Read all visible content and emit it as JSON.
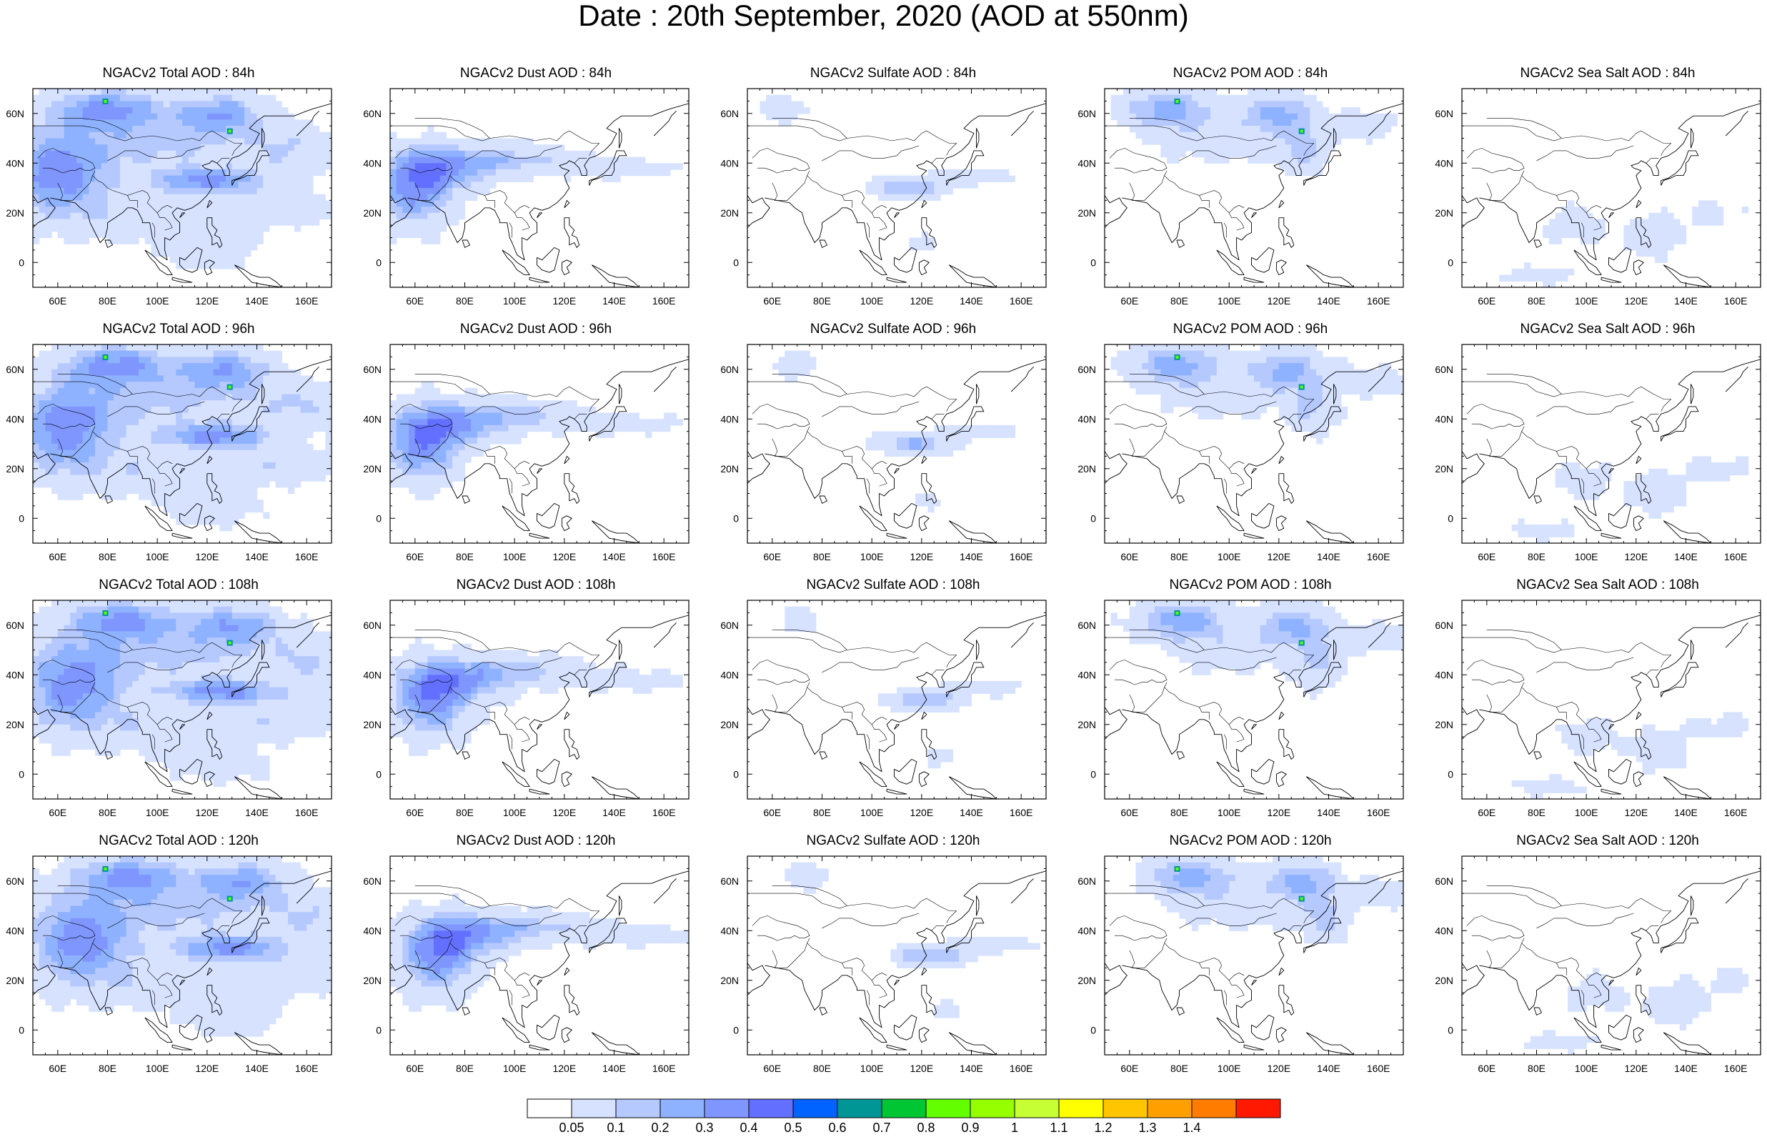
{
  "title": "Date : 20th September, 2020 (AOD at 550nm)",
  "species": [
    {
      "key": "total",
      "label": "NGACv2 Total AOD"
    },
    {
      "key": "dust",
      "label": "NGACv2 Dust AOD"
    },
    {
      "key": "sulfate",
      "label": "NGACv2 Sulfate AOD"
    },
    {
      "key": "pom",
      "label": "NGACv2 POM AOD"
    },
    {
      "key": "seasalt",
      "label": "NGACv2 Sea Salt AOD"
    }
  ],
  "forecast_hours": [
    "84h",
    "96h",
    "108h",
    "120h"
  ],
  "panel_titles": [
    [
      "NGACv2 Total AOD : 84h",
      "NGACv2 Dust AOD : 84h",
      "NGACv2 Sulfate AOD : 84h",
      "NGACv2 POM AOD : 84h",
      "NGACv2 Sea Salt AOD : 84h"
    ],
    [
      "NGACv2 Total AOD : 96h",
      "NGACv2 Dust AOD : 96h",
      "NGACv2 Sulfate AOD : 96h",
      "NGACv2 POM AOD : 96h",
      "NGACv2 Sea Salt AOD : 96h"
    ],
    [
      "NGACv2 Total AOD : 108h",
      "NGACv2 Dust AOD : 108h",
      "NGACv2 Sulfate AOD : 108h",
      "NGACv2 POM AOD : 108h",
      "NGACv2 Sea Salt AOD : 108h"
    ],
    [
      "NGACv2 Total AOD : 120h",
      "NGACv2 Dust AOD : 120h",
      "NGACv2 Sulfate AOD : 120h",
      "NGACv2 POM AOD : 120h",
      "NGACv2 Sea Salt  AOD : 120h"
    ]
  ],
  "map_extent": {
    "lon": [
      50,
      170
    ],
    "lat": [
      -10,
      70
    ]
  },
  "lon_ticks": [
    "60E",
    "80E",
    "100E",
    "120E",
    "140E",
    "160E"
  ],
  "lon_tick_values": [
    60,
    80,
    100,
    120,
    140,
    160
  ],
  "lat_ticks": [
    "60N",
    "40N",
    "20N",
    "0"
  ],
  "lat_tick_values": [
    60,
    40,
    20,
    0
  ],
  "colorbar": {
    "labels": [
      "0.05",
      "0.1",
      "0.2",
      "0.3",
      "0.4",
      "0.5",
      "0.6",
      "0.7",
      "0.8",
      "0.9",
      "1",
      "1.1",
      "1.2",
      "1.3",
      "1.4"
    ],
    "colors": [
      "#ffffff",
      "#d6e2ff",
      "#b5c9ff",
      "#8eb2ff",
      "#7f96ff",
      "#6370ff",
      "#0063ff",
      "#009696",
      "#00c633",
      "#63ff00",
      "#96ff00",
      "#c6ff33",
      "#ffff00",
      "#ffc600",
      "#ffa000",
      "#ff7c00",
      "#ff1900"
    ]
  },
  "aod_field_colors": {
    "light": "#d6e2ff",
    "medium": "#b5c9ff",
    "strong": "#8eb2ff",
    "heavy": "#7f96ff",
    "peak": "#6370ff",
    "hotspot": "#009696",
    "hotspot_high": "#63ff00"
  },
  "coastline_color": "#000000"
}
